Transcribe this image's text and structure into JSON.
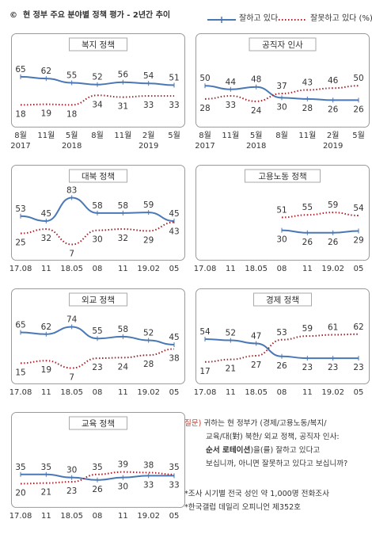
{
  "header": {
    "copyright": "©",
    "title": "현 정부 주요 분야별 정책 평가 - 2년간 추이",
    "legend_positive": "잘하고 있다",
    "legend_negative": "잘못하고 있다 (%)"
  },
  "colors": {
    "positive": "#4a78b5",
    "negative": "#a6202a",
    "frame": "#9a9a9a",
    "axis": "#cccccc"
  },
  "chart_data": [
    {
      "type": "line",
      "title": "복지 정책",
      "categories": [
        "8월\n2017",
        "11월",
        "5월\n2018",
        "8월",
        "11월",
        "2월\n2019",
        "5월"
      ],
      "series": [
        {
          "name": "잘하고 있다",
          "values": [
            65,
            62,
            55,
            52,
            56,
            54,
            51
          ]
        },
        {
          "name": "잘못하고 있다",
          "values": [
            18,
            19,
            18,
            34,
            31,
            33,
            33
          ]
        }
      ]
    },
    {
      "type": "line",
      "title": "공직자 인사",
      "categories": [
        "8월\n2017",
        "11월",
        "5월\n2018",
        "8월",
        "11월",
        "2월\n2019",
        "5월"
      ],
      "series": [
        {
          "name": "잘하고 있다",
          "values": [
            50,
            44,
            48,
            30,
            28,
            26,
            26
          ]
        },
        {
          "name": "잘못하고 있다",
          "values": [
            28,
            33,
            24,
            37,
            43,
            46,
            50
          ]
        }
      ]
    },
    {
      "type": "line",
      "title": "대북 정책",
      "categories": [
        "17.08",
        "11",
        "18.05",
        "08",
        "11",
        "19.02",
        "05"
      ],
      "series": [
        {
          "name": "잘하고 있다",
          "values": [
            53,
            45,
            83,
            58,
            58,
            59,
            45
          ]
        },
        {
          "name": "잘못하고 있다",
          "values": [
            25,
            32,
            7,
            30,
            32,
            29,
            43
          ]
        }
      ]
    },
    {
      "type": "line",
      "title": "고용노동 정책",
      "categories": [
        "17.08",
        "11",
        "18.05",
        "08",
        "11",
        "19.02",
        "05"
      ],
      "series": [
        {
          "name": "잘하고 있다",
          "values": [
            null,
            null,
            null,
            30,
            26,
            26,
            29
          ]
        },
        {
          "name": "잘못하고 있다",
          "values": [
            null,
            null,
            null,
            51,
            55,
            59,
            54
          ]
        }
      ]
    },
    {
      "type": "line",
      "title": "외교 정책",
      "categories": [
        "17.08",
        "11",
        "18.05",
        "08",
        "11",
        "19.02",
        "05"
      ],
      "series": [
        {
          "name": "잘하고 있다",
          "values": [
            65,
            62,
            74,
            55,
            58,
            52,
            45
          ]
        },
        {
          "name": "잘못하고 있다",
          "values": [
            15,
            19,
            7,
            23,
            24,
            28,
            38
          ]
        }
      ]
    },
    {
      "type": "line",
      "title": "경제 정책",
      "categories": [
        "17.08",
        "11",
        "18.05",
        "08",
        "11",
        "19.02",
        "05"
      ],
      "series": [
        {
          "name": "잘하고 있다",
          "values": [
            54,
            52,
            47,
            26,
            23,
            23,
            23
          ]
        },
        {
          "name": "잘못하고 있다",
          "values": [
            17,
            21,
            27,
            53,
            59,
            61,
            62
          ]
        }
      ]
    },
    {
      "type": "line",
      "title": "교육 정책",
      "categories": [
        "17.08",
        "11",
        "18.05",
        "08",
        "11",
        "19.02",
        "05"
      ],
      "series": [
        {
          "name": "잘하고 있다",
          "values": [
            35,
            35,
            30,
            26,
            30,
            33,
            33
          ]
        },
        {
          "name": "잘못하고 있다",
          "values": [
            20,
            21,
            23,
            35,
            39,
            38,
            35
          ]
        }
      ]
    }
  ],
  "notes": {
    "question_label": "질문)",
    "line1": " 귀하는 현 정부가 (경제/고용노동/복지/",
    "line2": "교육/대(對) 북한/ 외교 정책, 공직자 인사:",
    "line3_bold": "순서 로테이션",
    "line3_rest": ")을(를) 잘하고 있다고",
    "line4": "보십니까, 아니면 잘못하고 있다고 보십니까?",
    "line5": "*조사 시기별 전국 성인 약 1,000명 전화조사",
    "line6": "*한국갤럽 데일리 오피니언 제352호"
  }
}
